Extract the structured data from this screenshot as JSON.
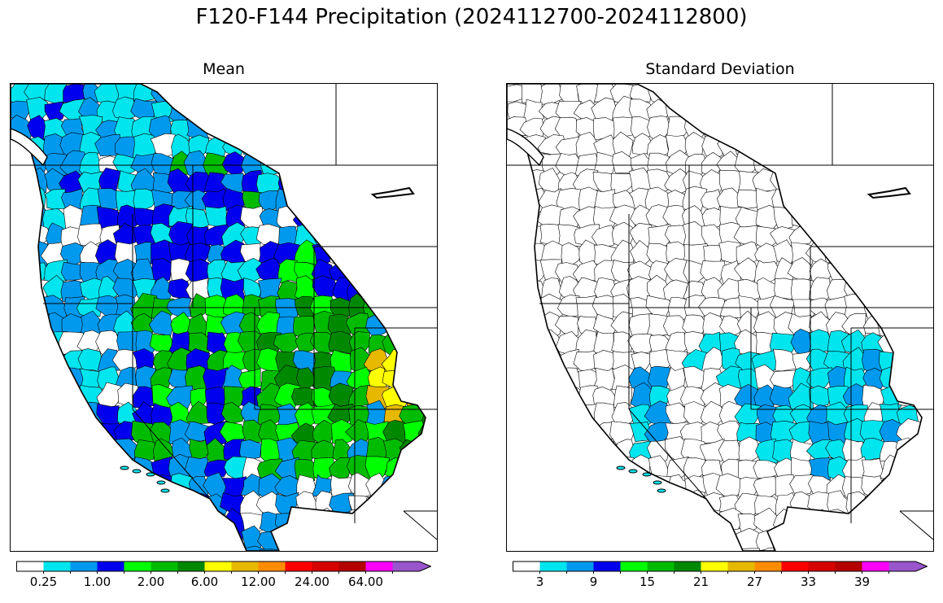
{
  "figure": {
    "title": "F120-F144 Precipitation (2024112700-2024112800)"
  },
  "panels": [
    {
      "title": "Mean",
      "colorbar": {
        "colors": [
          "#ffffff",
          "#00e5ee",
          "#0099ee",
          "#0000ee",
          "#00ff00",
          "#00bb00",
          "#008800",
          "#ffff00",
          "#e6b800",
          "#ff8c00",
          "#ff0000",
          "#d60000",
          "#b40000",
          "#ff00ff",
          "#9955cc"
        ],
        "tick_labels": [
          "0.25",
          "1.00",
          "2.00",
          "6.00",
          "12.00",
          "24.00",
          "64.00"
        ]
      }
    },
    {
      "title": "Standard Deviation",
      "colorbar": {
        "colors": [
          "#ffffff",
          "#00e5ee",
          "#0099ee",
          "#0000ee",
          "#00ff00",
          "#00bb00",
          "#008800",
          "#ffff00",
          "#e6b800",
          "#ff8c00",
          "#ff0000",
          "#d60000",
          "#b40000",
          "#ff00ff",
          "#9955cc"
        ],
        "tick_labels": [
          "3",
          "9",
          "15",
          "21",
          "27",
          "33",
          "39"
        ]
      }
    }
  ]
}
